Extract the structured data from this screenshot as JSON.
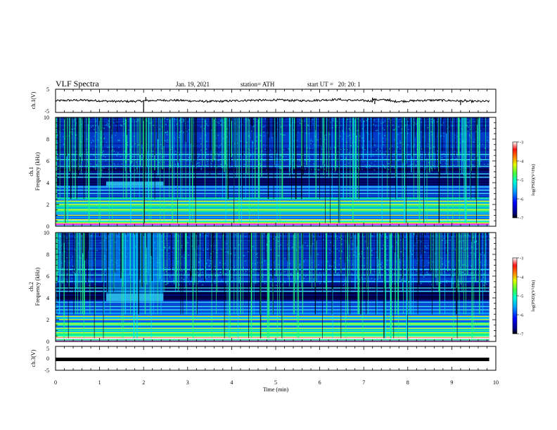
{
  "header": {
    "title": "VLF Spectra",
    "date": "Jan. 19, 2021",
    "station": "station= ATH",
    "start": "start UT =   20: 20: 1"
  },
  "chart_data": [
    {
      "type": "line",
      "name": "ch1-voltage-trace",
      "ylabel": "ch.1(V)",
      "ylim": [
        -5,
        5
      ],
      "yticks": [
        "5",
        "-5"
      ],
      "xlim": [
        0,
        10
      ],
      "baseline": 0.0,
      "x_end": 9.85,
      "spikes": [
        {
          "x": 2.0,
          "y": -5
        },
        {
          "x": 2.05,
          "y": 1.6
        },
        {
          "x": 7.2,
          "y": 1.4
        },
        {
          "x": 7.25,
          "y": -1.4
        },
        {
          "x": 7.55,
          "y": 0.8
        },
        {
          "x": 9.3,
          "y": 0.7
        },
        {
          "x": 9.2,
          "y": -1.8
        }
      ]
    },
    {
      "type": "heatmap",
      "name": "ch1-spectrogram",
      "ylabel": "ch.1 Frequency (kHz)",
      "ylim": [
        0,
        10
      ],
      "yticks": [
        "0",
        "2",
        "4",
        "6",
        "8",
        "10"
      ],
      "xlim": [
        0,
        10
      ],
      "x_end": 9.85,
      "colorbar": {
        "label": "log(PSD)(V²/Hz)",
        "range": [
          -7,
          -3
        ],
        "ticks": [
          "-3",
          "-4",
          "-5",
          "-6",
          "-7"
        ]
      },
      "feature": {
        "x": [
          1.15,
          2.45
        ],
        "freq_khz": [
          3.7,
          4.1
        ]
      },
      "tones_khz": [
        0.3,
        0.6,
        1.0,
        1.5,
        2.0,
        2.3,
        3.0,
        3.3,
        3.6,
        4.5,
        4.8,
        5.5,
        6.1,
        6.6
      ]
    },
    {
      "type": "heatmap",
      "name": "ch2-spectrogram",
      "ylabel": "ch.2 Frequency (kHz)",
      "ylim": [
        0,
        10
      ],
      "yticks": [
        "0",
        "2",
        "4",
        "6",
        "8",
        "10"
      ],
      "xlim": [
        0,
        10
      ],
      "x_end": 9.85,
      "colorbar": {
        "label": "log(PSD)(V²/Hz)",
        "range": [
          -7,
          -3
        ],
        "ticks": [
          "-3",
          "-4",
          "-5",
          "-6",
          "-7"
        ]
      },
      "feature": {
        "x": [
          1.15,
          2.45
        ],
        "freq_khz": [
          3.7,
          4.4
        ]
      },
      "tones_khz": [
        0.4,
        0.8,
        1.2,
        1.6,
        2.0,
        2.3,
        2.9,
        3.2,
        3.6,
        4.6,
        4.9,
        5.5,
        6.1,
        6.6
      ]
    },
    {
      "type": "line",
      "name": "ch3-voltage-trace",
      "ylabel": "ch.3(V)",
      "ylim": [
        -5,
        5
      ],
      "yticks": [
        "5",
        "0",
        "-5"
      ],
      "xlim": [
        0,
        10
      ],
      "xticks": [
        "0",
        "1",
        "2",
        "3",
        "4",
        "5",
        "6",
        "7",
        "8",
        "9",
        "10"
      ],
      "xlabel": "Time (min)",
      "baseline": 0.0,
      "x_end": 9.85
    }
  ]
}
